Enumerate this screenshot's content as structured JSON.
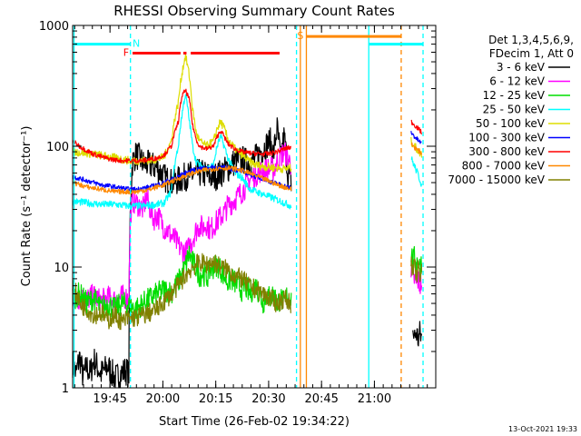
{
  "chart_data": {
    "type": "line",
    "title": "RHESSI Observing Summary Count Rates",
    "xlabel": "Start Time (26-Feb-02 19:34:22)",
    "ylabel": "Count Rate (s⁻¹ detector⁻¹)",
    "x_unit": "minutes since 19:34:22",
    "xlim": [
      0,
      103
    ],
    "ylim": [
      1,
      1000
    ],
    "y_scale": "log",
    "x_ticks": [
      {
        "label": "19:45",
        "x": 10.6
      },
      {
        "label": "20:00",
        "x": 25.6
      },
      {
        "label": "20:15",
        "x": 40.6
      },
      {
        "label": "20:30",
        "x": 55.6
      },
      {
        "label": "20:45",
        "x": 70.6
      },
      {
        "label": "21:00",
        "x": 85.6
      }
    ],
    "y_ticks": [
      {
        "label": "1",
        "y": 1
      },
      {
        "label": "10",
        "y": 10
      },
      {
        "label": "100",
        "y": 100
      },
      {
        "label": "1000",
        "y": 1000
      }
    ],
    "legend": {
      "position": "right",
      "header": [
        "Det 1,3,4,5,6,9,",
        "FDecim 1, Att 0"
      ]
    },
    "series": [
      {
        "name": "3 - 6 keV",
        "color": "#000000",
        "segments": [
          {
            "x": [
              0,
              1,
              2,
              3,
              4,
              5,
              6,
              8,
              10,
              12,
              15,
              16,
              17,
              18,
              19,
              20,
              22,
              24,
              26,
              28,
              30,
              32,
              34,
              36,
              38,
              40,
              42,
              44,
              46,
              48,
              50,
              52,
              54,
              56,
              57,
              58,
              59,
              60,
              61,
              62
            ],
            "y": [
              1.6,
              1.3,
              1.8,
              1.2,
              1.5,
              1.3,
              1.7,
              1.3,
              1.5,
              1.2,
              1.4,
              1.3,
              75,
              85,
              80,
              72,
              70,
              66,
              55,
              50,
              52,
              56,
              58,
              60,
              58,
              55,
              60,
              65,
              75,
              78,
              72,
              80,
              95,
              110,
              85,
              140,
              75,
              120,
              60,
              50
            ]
          },
          {
            "x": [
              96.5,
              97,
              97.5,
              98,
              98.5,
              99
            ],
            "y": [
              2.9,
              2.6,
              2.9,
              2.5,
              2.8,
              2.6
            ]
          }
        ]
      },
      {
        "name": "6 - 12 keV",
        "color": "#ff00ff",
        "segments": [
          {
            "x": [
              0,
              1,
              2,
              4,
              6,
              8,
              10,
              12,
              14,
              16,
              16.5,
              17,
              18,
              19,
              20,
              21,
              22,
              23,
              24,
              25,
              26,
              27,
              28,
              29,
              30,
              31,
              32,
              33,
              34,
              35,
              36,
              37,
              38,
              39,
              40,
              41,
              42,
              43,
              44,
              45,
              46,
              47,
              48,
              49,
              50,
              51,
              52,
              53,
              54,
              55,
              56,
              57,
              58,
              59,
              60,
              61,
              62
            ],
            "y": [
              5.8,
              5.2,
              5.6,
              5.4,
              5.8,
              5.2,
              5.6,
              5.3,
              5.7,
              5.5,
              28,
              35,
              34,
              32,
              30,
              38,
              30,
              25,
              27,
              24,
              21,
              20,
              18,
              17,
              15,
              14,
              13,
              14.5,
              17,
              20,
              22,
              21,
              23,
              20,
              22,
              24,
              26,
              28,
              32,
              34,
              36,
              39,
              42,
              46,
              52,
              55,
              58,
              62,
              62,
              64,
              66,
              64,
              74,
              82,
              90,
              80,
              70
            ]
          },
          {
            "x": [
              96,
              96.5,
              97,
              97.5,
              98,
              98.5,
              99
            ],
            "y": [
              8.5,
              7.5,
              8,
              7.2,
              7.8,
              7,
              7.5
            ]
          }
        ]
      },
      {
        "name": "12 - 25 keV",
        "color": "#00dd00",
        "segments": [
          {
            "x": [
              0,
              2,
              4,
              6,
              8,
              10,
              12,
              14,
              16,
              18,
              20,
              22,
              24,
              26,
              28,
              30,
              32,
              33,
              34,
              35,
              36,
              37,
              38,
              39,
              40,
              41,
              42,
              43,
              44,
              45,
              46,
              47,
              48,
              49,
              50,
              51,
              52,
              53,
              54,
              55,
              56,
              57,
              58,
              59,
              60,
              61,
              62
            ],
            "y": [
              5.5,
              6,
              5,
              5.5,
              4.5,
              5,
              4.5,
              5,
              4.8,
              4.5,
              5,
              5.5,
              6,
              6.5,
              6.2,
              7.5,
              10,
              13,
              11,
              10,
              8.5,
              9,
              8,
              9.5,
              10,
              10.5,
              9.5,
              8.5,
              7.5,
              8,
              7.5,
              7,
              6.5,
              7,
              6,
              6.5,
              7,
              6,
              5,
              6,
              5.5,
              6,
              5,
              5.5,
              5,
              6,
              5.5
            ]
          },
          {
            "x": [
              96,
              96.5,
              97,
              97.5,
              98,
              98.5,
              99
            ],
            "y": [
              13,
              11,
              12,
              10.5,
              12,
              10,
              11
            ]
          }
        ]
      },
      {
        "name": "25 - 50 keV",
        "color": "#00ffff",
        "segments": [
          {
            "x": [
              0,
              4,
              8,
              12,
              16,
              20,
              24,
              26,
              28,
              30,
              31,
              32,
              33,
              34,
              35,
              36,
              38,
              40,
              41,
              42,
              43,
              44,
              46,
              48,
              50,
              52,
              54,
              56,
              58,
              60,
              62
            ],
            "y": [
              35,
              34,
              33,
              33,
              32,
              32,
              33,
              34,
              42,
              100,
              180,
              270,
              170,
              100,
              75,
              70,
              65,
              70,
              100,
              120,
              100,
              80,
              60,
              55,
              45,
              42,
              40,
              38,
              36,
              34,
              32
            ]
          },
          {
            "x": [
              96,
              97,
              98,
              99
            ],
            "y": [
              80,
              68,
              58,
              48
            ]
          }
        ]
      },
      {
        "name": "50 - 100 keV",
        "color": "#dddd00",
        "segments": [
          {
            "x": [
              0,
              4,
              8,
              12,
              16,
              20,
              24,
              26,
              28,
              30,
              31,
              32,
              33,
              34,
              35,
              36,
              38,
              40,
              41,
              42,
              43,
              44,
              46,
              48,
              50,
              52,
              54,
              56,
              58,
              60,
              62
            ],
            "y": [
              90,
              88,
              84,
              80,
              76,
              76,
              78,
              82,
              110,
              230,
              400,
              560,
              400,
              200,
              130,
              110,
              100,
              110,
              140,
              160,
              140,
              115,
              95,
              85,
              75,
              70,
              68,
              67,
              66,
              65,
              66
            ]
          },
          {
            "x": [
              96,
              97,
              98,
              99
            ],
            "y": [
              110,
              100,
              92,
              85
            ]
          }
        ]
      },
      {
        "name": "100 - 300 keV",
        "color": "#0000ff",
        "segments": [
          {
            "x": [
              0,
              2,
              4,
              6,
              8,
              10,
              12,
              14,
              16,
              18,
              20,
              22,
              24,
              26,
              28,
              30,
              32,
              34,
              36,
              38,
              40,
              42,
              44,
              46,
              48,
              50,
              52,
              54,
              56,
              58,
              60,
              62
            ],
            "y": [
              56,
              54,
              52,
              50,
              48,
              47,
              46,
              45,
              44,
              44,
              45,
              46,
              48,
              50,
              53,
              56,
              60,
              63,
              65,
              66,
              67,
              67,
              66,
              64,
              62,
              59,
              56,
              54,
              51,
              49,
              47,
              45
            ]
          },
          {
            "x": [
              96,
              97,
              98,
              99
            ],
            "y": [
              130,
              120,
              112,
              105
            ]
          }
        ]
      },
      {
        "name": "300 - 800 keV",
        "color": "#ff0000",
        "segments": [
          {
            "x": [
              0,
              2,
              4,
              6,
              8,
              10,
              12,
              14,
              16,
              18,
              20,
              22,
              24,
              26,
              28,
              30,
              31,
              32,
              33,
              34,
              35,
              36,
              38,
              40,
              41,
              42,
              43,
              44,
              46,
              48,
              50,
              52,
              54,
              56,
              58,
              60,
              62
            ],
            "y": [
              110,
              100,
              92,
              86,
              82,
              79,
              77,
              76,
              76,
              76,
              76,
              78,
              80,
              85,
              100,
              160,
              260,
              290,
              250,
              150,
              115,
              100,
              95,
              100,
              120,
              135,
              120,
              105,
              95,
              90,
              88,
              87,
              86,
              87,
              90,
              95,
              98
            ]
          },
          {
            "x": [
              96,
              97,
              98,
              99
            ],
            "y": [
              160,
              150,
              140,
              130
            ]
          }
        ]
      },
      {
        "name": "800 - 7000 keV",
        "color": "#ff8800",
        "segments": [
          {
            "x": [
              0,
              2,
              4,
              6,
              8,
              10,
              12,
              14,
              16,
              18,
              20,
              22,
              24,
              26,
              28,
              30,
              32,
              34,
              36,
              38,
              40,
              42,
              44,
              46,
              48,
              50,
              52,
              54,
              56,
              58,
              60,
              62
            ],
            "y": [
              50,
              48,
              46,
              45,
              44,
              43,
              42,
              42,
              42,
              42,
              43,
              44,
              46,
              48,
              51,
              54,
              57,
              60,
              62,
              64,
              65,
              66,
              66,
              65,
              63,
              60,
              57,
              54,
              51,
              48,
              46,
              44
            ]
          },
          {
            "x": [
              96,
              97,
              98,
              99
            ],
            "y": [
              105,
              98,
              92,
              88
            ]
          }
        ]
      },
      {
        "name": "7000 - 15000 keV",
        "color": "#808000",
        "segments": [
          {
            "x": [
              0,
              1,
              2,
              4,
              6,
              8,
              10,
              12,
              14,
              16,
              18,
              20,
              22,
              24,
              26,
              28,
              30,
              32,
              34,
              36,
              38,
              40,
              42,
              44,
              46,
              48,
              50,
              52,
              54,
              56,
              58,
              60,
              62
            ],
            "y": [
              7,
              6,
              5,
              4.5,
              4,
              4.2,
              3.6,
              4,
              3.5,
              3.8,
              3.8,
              4,
              4.2,
              4.5,
              5.2,
              6,
              7,
              8.5,
              10,
              11,
              10.5,
              11,
              10,
              9.5,
              8.5,
              8,
              7,
              6.5,
              6,
              5.5,
              5,
              5.5,
              5
            ]
          },
          {
            "x": [
              96,
              96.5,
              97,
              97.5,
              98,
              98.5,
              99
            ],
            "y": [
              10.5,
              9,
              10,
              8.5,
              9.5,
              8.2,
              9
            ]
          }
        ]
      }
    ],
    "annotations": {
      "vertical_lines": [
        {
          "x": 0.4,
          "color": "#00ffff",
          "style": "solid"
        },
        {
          "x": 16.4,
          "color": "#00ffff",
          "style": "dashed"
        },
        {
          "x": 63.5,
          "color": "#00ffff",
          "style": "dashed"
        },
        {
          "x": 64.6,
          "color": "#ff8800",
          "style": "solid"
        },
        {
          "x": 66.3,
          "color": "#ff8800",
          "style": "solid"
        },
        {
          "x": 84.0,
          "color": "#00ffff",
          "style": "solid"
        },
        {
          "x": 93.2,
          "color": "#ff8800",
          "style": "dashed"
        },
        {
          "x": 99.4,
          "color": "#00ffff",
          "style": "dashed"
        }
      ],
      "bars": [
        {
          "label": "N",
          "color": "#00ffff",
          "label_color": "#00ffff",
          "level": 700,
          "x_start": 0.4,
          "x_end": 16.4,
          "label_x": 17.0,
          "label_side": "right"
        },
        {
          "label": "",
          "color": "#00ffff",
          "label_color": "#00ffff",
          "level": 700,
          "x_start": 84.0,
          "x_end": 99.4
        },
        {
          "label": "F",
          "color": "#ff0000",
          "label_color": "#ff0000",
          "level": 590,
          "x_start": 17.0,
          "x_end": 30.6,
          "label_x": 16.0,
          "label_side": "left"
        },
        {
          "label": "",
          "color": "#ff0000",
          "label_color": "#ff0000",
          "level": 590,
          "x_start": 31.4,
          "x_end": 32.3
        },
        {
          "label": "",
          "color": "#ff0000",
          "label_color": "#ff0000",
          "level": 590,
          "x_start": 33.5,
          "x_end": 58.7
        },
        {
          "label": "S",
          "color": "#ff8800",
          "label_color": "#ff8800",
          "level": 810,
          "x_start": 66.3,
          "x_end": 93.2,
          "label_x": 65.5,
          "label_side": "left"
        }
      ]
    }
  },
  "footer": {
    "timestamp": "13-Oct-2021 19:33"
  }
}
